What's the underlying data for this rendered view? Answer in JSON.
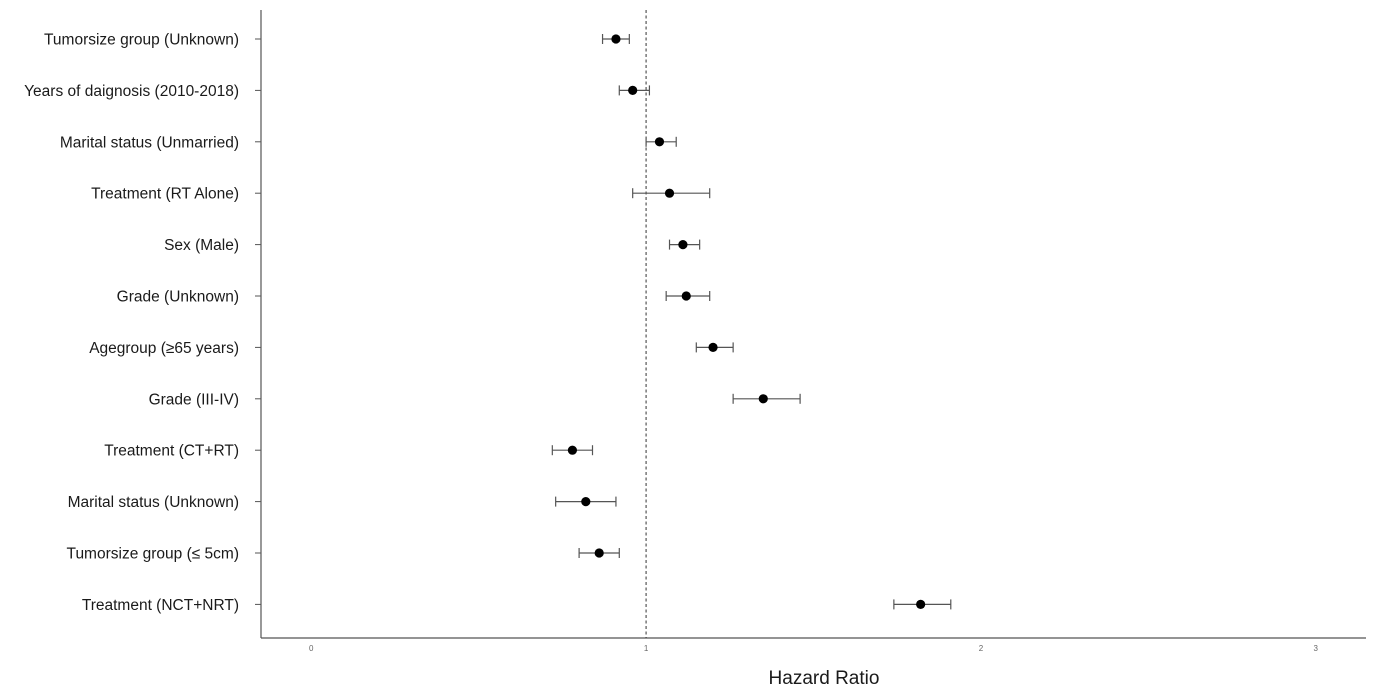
{
  "chart_data": {
    "type": "forest",
    "xlabel": "Hazard Ratio",
    "xlim": [
      -0.15,
      3.15
    ],
    "xticks": [
      0,
      1,
      2,
      3
    ],
    "reference_line": 1,
    "grid": false,
    "rows": [
      {
        "label": "Tumorsize group (Unknown)",
        "hr": 0.91,
        "lower": 0.87,
        "upper": 0.95
      },
      {
        "label": "Years of daignosis (2010-2018)",
        "hr": 0.96,
        "lower": 0.92,
        "upper": 1.01
      },
      {
        "label": "Marital status (Unmarried)",
        "hr": 1.04,
        "lower": 1.0,
        "upper": 1.09
      },
      {
        "label": "Treatment (RT Alone)",
        "hr": 1.07,
        "lower": 0.96,
        "upper": 1.19
      },
      {
        "label": "Sex (Male)",
        "hr": 1.11,
        "lower": 1.07,
        "upper": 1.16
      },
      {
        "label": "Grade (Unknown)",
        "hr": 1.12,
        "lower": 1.06,
        "upper": 1.19
      },
      {
        "label": "Agegroup (≥65 years)",
        "hr": 1.2,
        "lower": 1.15,
        "upper": 1.26
      },
      {
        "label": "Grade (III-IV)",
        "hr": 1.35,
        "lower": 1.26,
        "upper": 1.46
      },
      {
        "label": "Treatment (CT+RT)",
        "hr": 0.78,
        "lower": 0.72,
        "upper": 0.84
      },
      {
        "label": "Marital status (Unknown)",
        "hr": 0.82,
        "lower": 0.73,
        "upper": 0.91
      },
      {
        "label": "Tumorsize group (≤ 5cm)",
        "hr": 0.86,
        "lower": 0.8,
        "upper": 0.92
      },
      {
        "label": "Treatment (NCT+NRT)",
        "hr": 1.82,
        "lower": 1.74,
        "upper": 1.91
      }
    ]
  }
}
